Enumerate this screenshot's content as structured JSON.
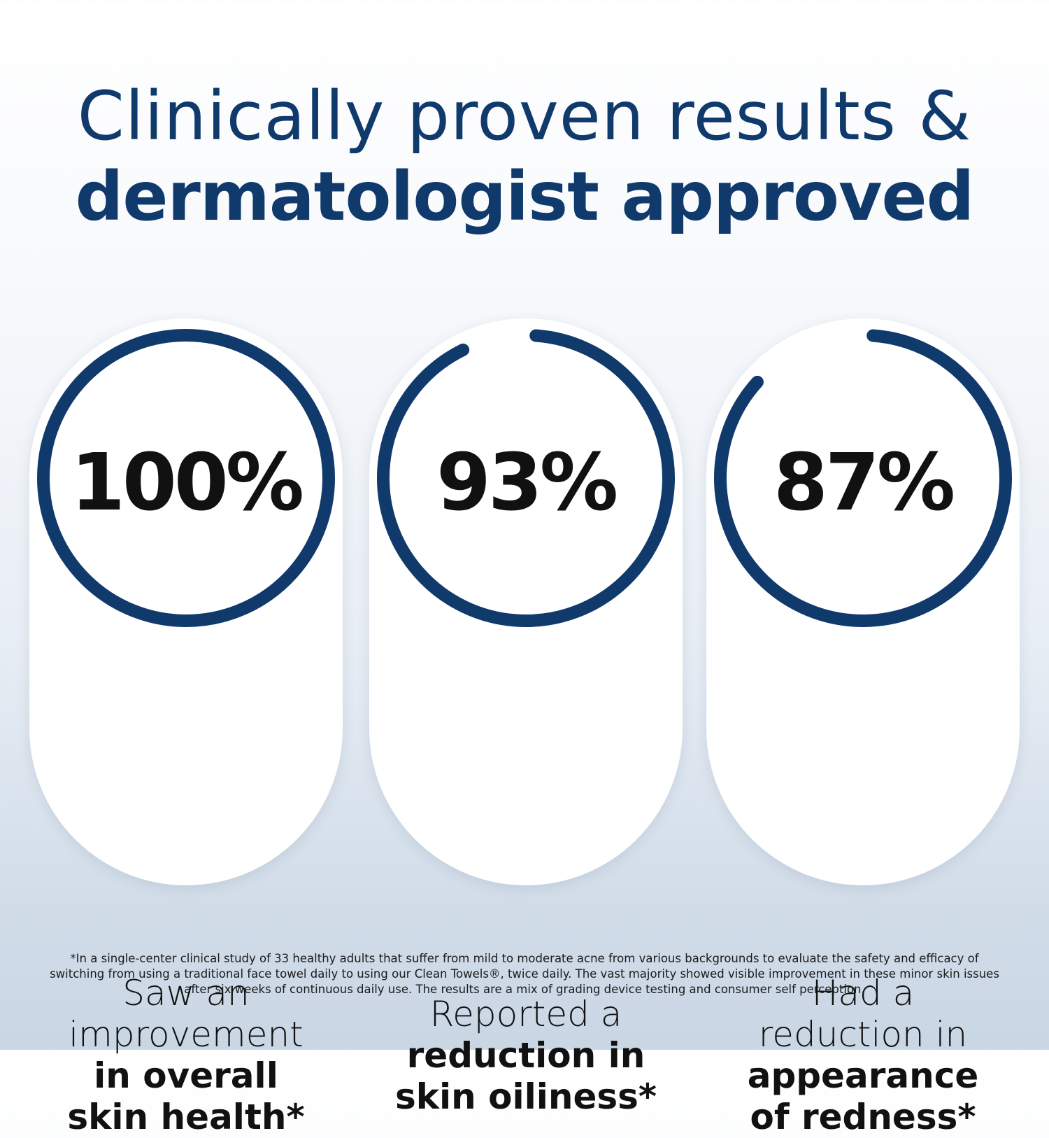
{
  "headline": {
    "line1": "Clinically proven results &",
    "line2": "dermatologist approved"
  },
  "accent_color": "#0f3a6b",
  "stats": [
    {
      "value_percent": 100,
      "label": "100%",
      "lines": [
        {
          "text": "Saw an",
          "bold": false
        },
        {
          "text": "improvement",
          "bold": false
        },
        {
          "text": "in overall",
          "bold": true
        },
        {
          "text": "skin health*",
          "bold": true
        }
      ]
    },
    {
      "value_percent": 93,
      "label": "93%",
      "lines": [
        {
          "text": "Reported a",
          "bold": false
        },
        {
          "text": "reduction in",
          "bold": true
        },
        {
          "text": "skin oiliness*",
          "bold": true
        }
      ]
    },
    {
      "value_percent": 87,
      "label": "87%",
      "lines": [
        {
          "text": "Had a",
          "bold": false
        },
        {
          "text": "reduction in",
          "bold": false
        },
        {
          "text": "appearance",
          "bold": true
        },
        {
          "text": "of redness*",
          "bold": true
        }
      ]
    }
  ],
  "footnote": "*In a single-center clinical study of 33 healthy adults that suffer from mild to moderate acne from various backgrounds to evaluate the safety and efficacy of switching from using a traditional face towel daily to using our Clean Towels®, twice daily. The vast majority showed visible improvement in these minor skin issues after six weeks of continuous daily use. The results are a mix of grading device testing and consumer self perception."
}
